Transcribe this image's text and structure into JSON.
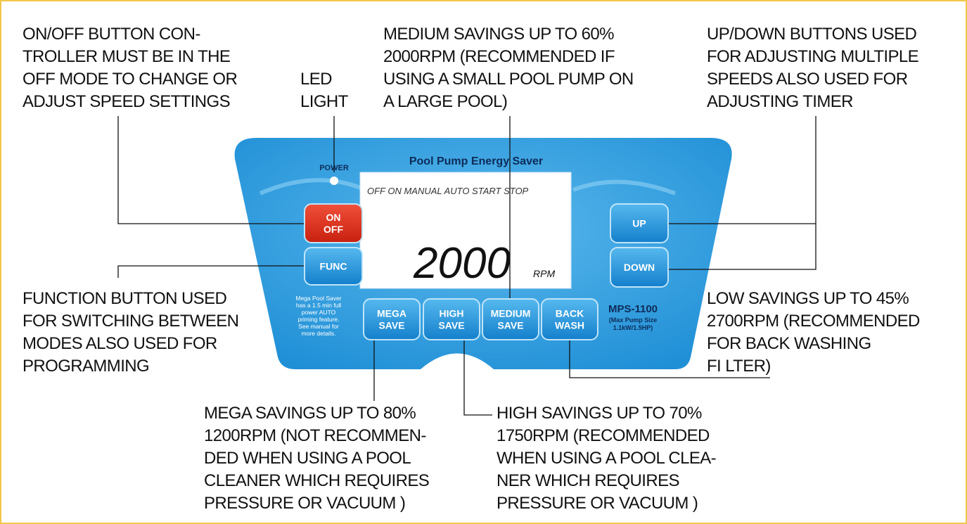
{
  "annotations": [
    {
      "lines": [
        "ON/OFF BUTTON CON-",
        "TROLLER MUST BE IN THE",
        "OFF MODE TO CHANGE OR",
        "ADJUST SPEED SETTINGS"
      ]
    },
    {
      "lines": [
        "LED",
        "LIGHT"
      ]
    },
    {
      "lines": [
        "MEDIUM SAVINGS UP TO 60%",
        "2000RPM (RECOMMENDED IF",
        "USING A SMALL POOL PUMP ON",
        "A LARGE POOL)"
      ]
    },
    {
      "lines": [
        "UP/DOWN BUTTONS USED",
        "FOR ADJUSTING MULTIPLE",
        "SPEEDS ALSO USED FOR",
        "ADJUSTING TIMER"
      ]
    },
    {
      "lines": [
        "FUNCTION BUTTON USED",
        "FOR SWITCHING BETWEEN",
        "MODES ALSO USED FOR",
        "PROGRAMMING"
      ]
    },
    {
      "lines": [
        "LOW SAVINGS UP TO 45%",
        "2700RPM (RECOMMENDED",
        "FOR BACK WASHING",
        "FI LTER)"
      ]
    },
    {
      "lines": [
        "MEGA SAVINGS UP TO 80%",
        "1200RPM (NOT RECOMMEN-",
        "DED WHEN USING A POOL",
        "CLEANER WHICH REQUIRES",
        "PRESSURE OR VACUUM )"
      ]
    },
    {
      "lines": [
        "HIGH SAVINGS UP TO 70%",
        "1750RPM (RECOMMENDED",
        "WHEN USING A POOL CLEA-",
        "NER WHICH REQUIRES",
        "PRESSURE OR VACUUM )"
      ]
    }
  ],
  "panel": {
    "title": "Pool Pump Energy Saver",
    "power_label": "POWER",
    "status_bar": "OFF ON MANUAL AUTO START STOP",
    "display_value": "2000",
    "display_unit": "RPM",
    "buttons": [
      {
        "lines": [
          "ON",
          "OFF"
        ]
      },
      {
        "lines": [
          "FUNC"
        ]
      },
      {
        "lines": [
          "UP"
        ]
      },
      {
        "lines": [
          "DOWN"
        ]
      },
      {
        "lines": [
          "MEGA",
          "SAVE"
        ]
      },
      {
        "lines": [
          "HIGH",
          "SAVE"
        ]
      },
      {
        "lines": [
          "MEDIUM",
          "SAVE"
        ]
      },
      {
        "lines": [
          "BACK",
          "WASH"
        ]
      }
    ],
    "note": [
      "Mega Pool Saver",
      "has a 1.5 min full",
      "power AUTO",
      "priming feature.",
      "See manual for",
      "more details."
    ],
    "model": "MPS-1100",
    "model_spec": [
      "(Max Pump Size",
      "1.1kW/1.5HP)"
    ]
  }
}
